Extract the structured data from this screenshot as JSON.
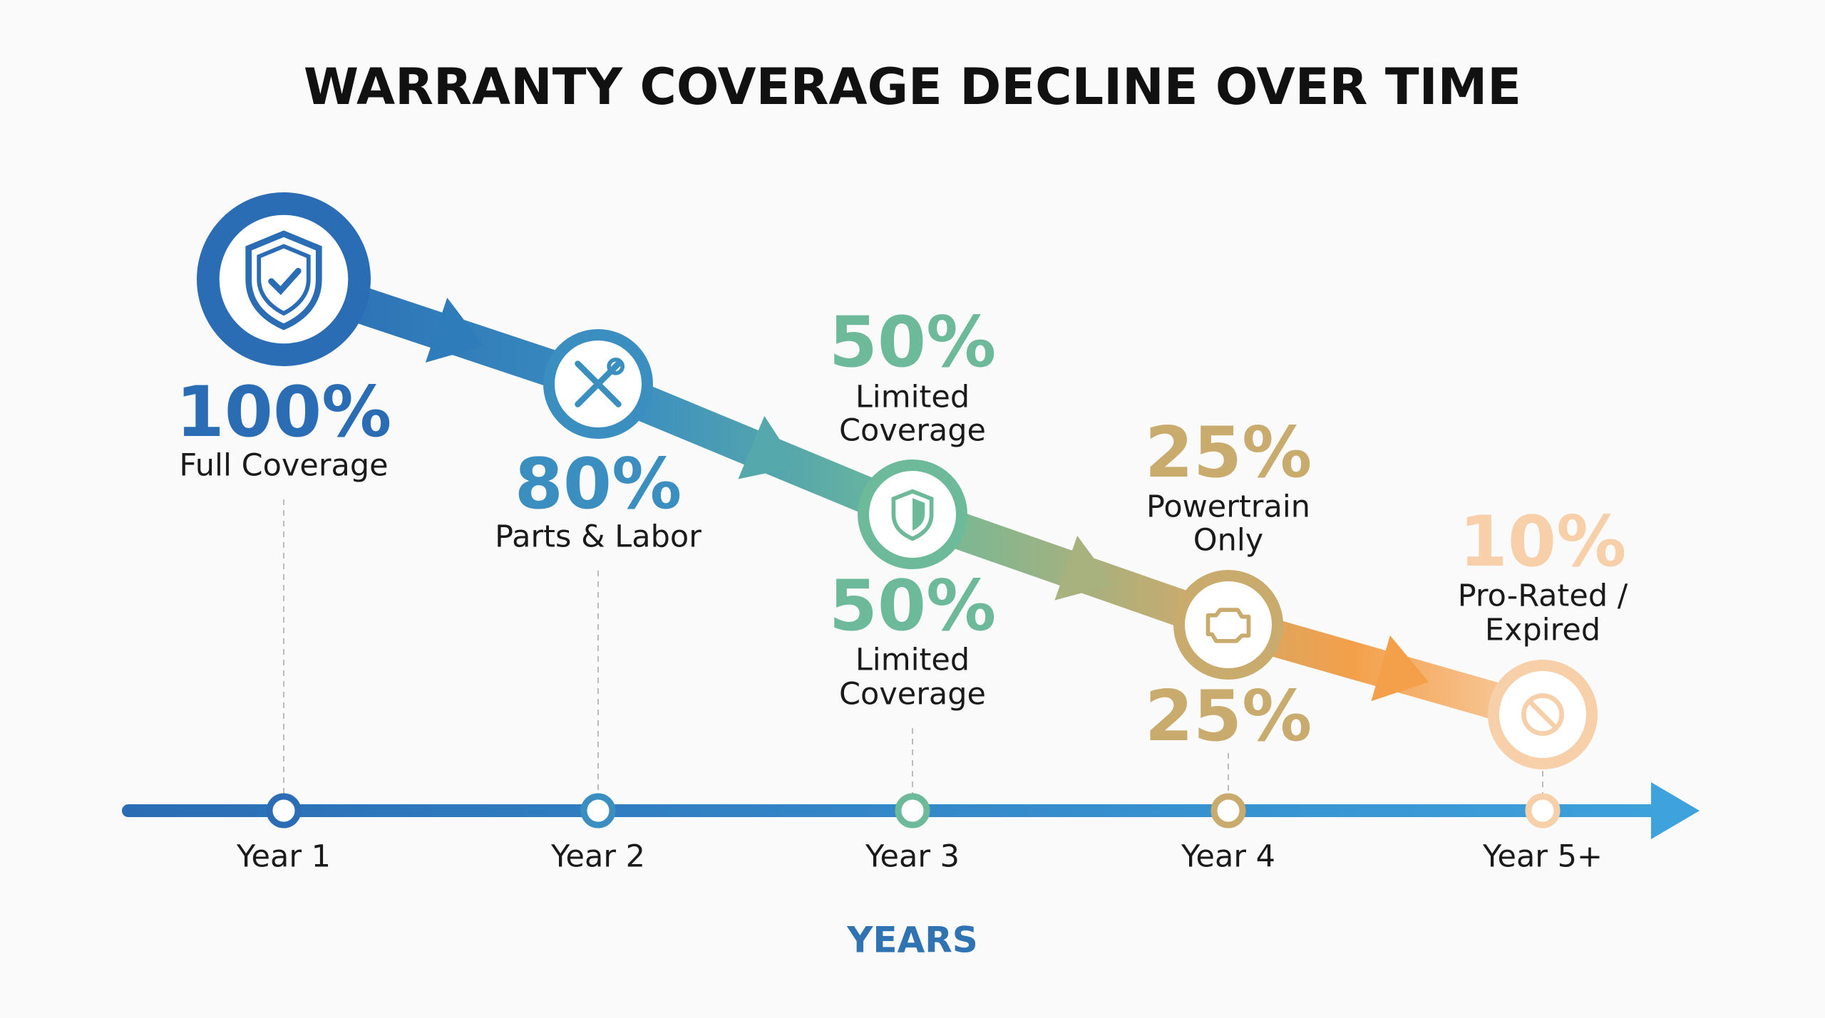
{
  "title": "WARRANTY COVERAGE DECLINE OVER TIME",
  "axis_label": "YEARS",
  "stages": [
    {
      "year": "Year 1",
      "labels": [
        {
          "value": "100%",
          "lines": [
            "Full Coverage"
          ]
        }
      ]
    },
    {
      "year": "Year 2",
      "labels": [
        {
          "value": "80%",
          "lines": [
            "Parts & Labor"
          ]
        }
      ]
    },
    {
      "year": "Year 3",
      "labels": [
        {
          "value": "50%",
          "lines": [
            "Limited",
            "Coverage"
          ]
        },
        {
          "value": "50%",
          "lines": [
            "Limited",
            "Coverage"
          ]
        }
      ]
    },
    {
      "year": "Year 4",
      "labels": [
        {
          "value": "25%",
          "lines": [
            "Powertrain",
            "Only"
          ]
        },
        {
          "value": "25%"
        }
      ]
    },
    {
      "year": "Year 5+",
      "labels": [
        {
          "value": "10%",
          "lines": [
            "Pro-Rated /",
            "Expired"
          ]
        }
      ]
    }
  ]
}
